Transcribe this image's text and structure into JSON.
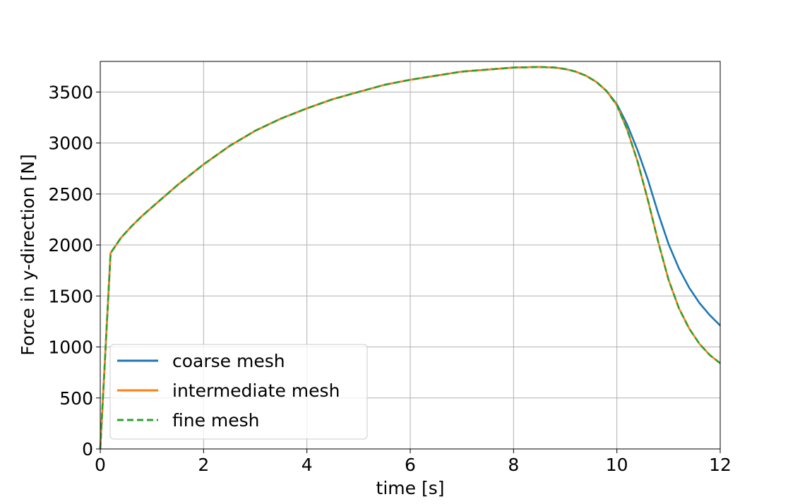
{
  "chart_data": {
    "type": "line",
    "xlabel": "time [s]",
    "ylabel": "Force in y-direction [N]",
    "xlim": [
      0,
      12
    ],
    "ylim": [
      0,
      3800
    ],
    "xticks": [
      0,
      2,
      4,
      6,
      8,
      10,
      12
    ],
    "yticks": [
      0,
      500,
      1000,
      1500,
      2000,
      2500,
      3000,
      3500
    ],
    "grid": true,
    "legend_position": "lower-left",
    "series": [
      {
        "name": "coarse mesh",
        "color": "#1f77b4",
        "dash": "solid",
        "x": [
          0,
          0.2,
          0.4,
          0.6,
          0.8,
          1.0,
          1.5,
          2.0,
          2.5,
          3.0,
          3.5,
          4.0,
          4.5,
          5.0,
          5.5,
          6.0,
          6.5,
          7.0,
          7.5,
          8.0,
          8.5,
          8.8,
          9.0,
          9.2,
          9.4,
          9.6,
          9.8,
          10.0,
          10.2,
          10.4,
          10.6,
          10.8,
          11.0,
          11.2,
          11.4,
          11.6,
          11.8,
          12.0
        ],
        "y": [
          0,
          1920,
          2070,
          2180,
          2280,
          2370,
          2590,
          2790,
          2970,
          3120,
          3240,
          3340,
          3430,
          3500,
          3570,
          3620,
          3660,
          3700,
          3720,
          3740,
          3745,
          3740,
          3725,
          3700,
          3660,
          3600,
          3510,
          3380,
          3180,
          2930,
          2640,
          2310,
          2010,
          1770,
          1580,
          1430,
          1310,
          1210
        ]
      },
      {
        "name": "intermediate mesh",
        "color": "#ff7f0e",
        "dash": "solid",
        "x": [
          0,
          0.2,
          0.4,
          0.6,
          0.8,
          1.0,
          1.5,
          2.0,
          2.5,
          3.0,
          3.5,
          4.0,
          4.5,
          5.0,
          5.5,
          6.0,
          6.5,
          7.0,
          7.5,
          8.0,
          8.5,
          8.8,
          9.0,
          9.2,
          9.4,
          9.6,
          9.8,
          10.0,
          10.2,
          10.4,
          10.6,
          10.8,
          11.0,
          11.2,
          11.4,
          11.6,
          11.8,
          12.0
        ],
        "y": [
          0,
          1920,
          2070,
          2180,
          2280,
          2370,
          2590,
          2790,
          2970,
          3120,
          3240,
          3340,
          3430,
          3500,
          3570,
          3620,
          3660,
          3700,
          3720,
          3740,
          3745,
          3740,
          3725,
          3700,
          3660,
          3600,
          3510,
          3370,
          3130,
          2820,
          2440,
          2030,
          1660,
          1380,
          1180,
          1030,
          920,
          840
        ]
      },
      {
        "name": "fine mesh",
        "color": "#2ca02c",
        "dash": "dashed",
        "x": [
          0,
          0.2,
          0.4,
          0.6,
          0.8,
          1.0,
          1.5,
          2.0,
          2.5,
          3.0,
          3.5,
          4.0,
          4.5,
          5.0,
          5.5,
          6.0,
          6.5,
          7.0,
          7.5,
          8.0,
          8.5,
          8.8,
          9.0,
          9.2,
          9.4,
          9.6,
          9.8,
          10.0,
          10.2,
          10.4,
          10.6,
          10.8,
          11.0,
          11.2,
          11.4,
          11.6,
          11.8,
          12.0
        ],
        "y": [
          0,
          1920,
          2070,
          2180,
          2280,
          2370,
          2590,
          2790,
          2970,
          3120,
          3240,
          3340,
          3430,
          3500,
          3570,
          3620,
          3660,
          3700,
          3720,
          3740,
          3745,
          3740,
          3725,
          3700,
          3660,
          3600,
          3510,
          3370,
          3130,
          2820,
          2440,
          2030,
          1660,
          1380,
          1180,
          1030,
          920,
          840
        ]
      }
    ]
  }
}
